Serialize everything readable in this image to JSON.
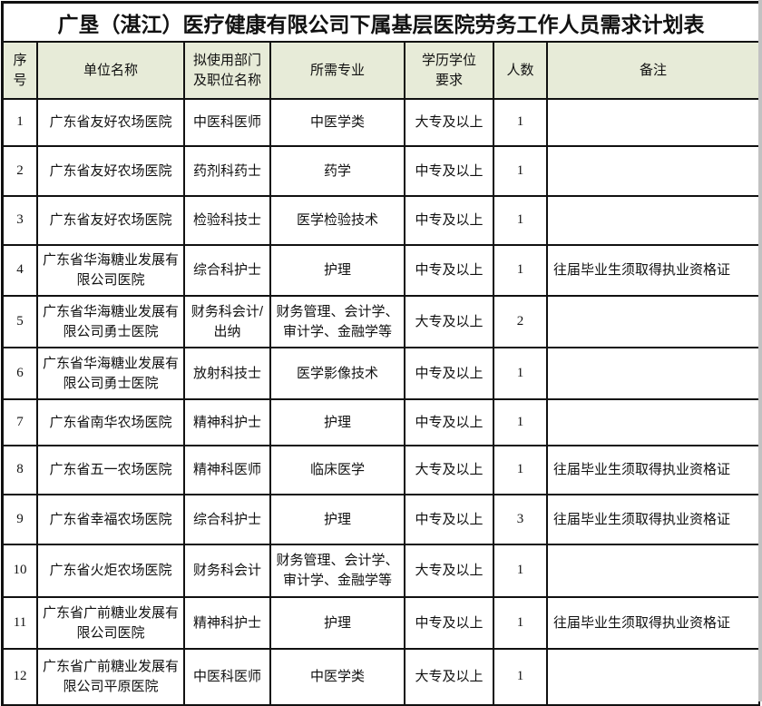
{
  "title": "广垦（湛江）医疗健康有限公司下属基层医院劳务工作人员需求计划表",
  "colors": {
    "header_bg": "#e7ebd8",
    "border": "#111111",
    "edge_strip": "#c2c2c2"
  },
  "table": {
    "headers": {
      "no": "序号",
      "unit": "单位名称",
      "dept": "拟使用部门\n及职位名称",
      "major": "所需专业",
      "edu": "学历学位\n要求",
      "count": "人数",
      "remark": "备注"
    },
    "rows": [
      {
        "no": "1",
        "unit": "广东省友好农场医院",
        "dept": "中医科医师",
        "major": "中医学类",
        "edu": "大专及以上",
        "count": "1",
        "remark": ""
      },
      {
        "no": "2",
        "unit": "广东省友好农场医院",
        "dept": "药剂科药士",
        "major": "药学",
        "edu": "中专及以上",
        "count": "1",
        "remark": ""
      },
      {
        "no": "3",
        "unit": "广东省友好农场医院",
        "dept": "检验科技士",
        "major": "医学检验技术",
        "edu": "中专及以上",
        "count": "1",
        "remark": ""
      },
      {
        "no": "4",
        "unit": "广东省华海糖业发展有限公司医院",
        "dept": "综合科护士",
        "major": "护理",
        "edu": "中专及以上",
        "count": "1",
        "remark": "往届毕业生须取得执业资格证"
      },
      {
        "no": "5",
        "unit": "广东省华海糖业发展有限公司勇士医院",
        "dept": "财务科会计/\n出纳",
        "major": "财务管理、会计学、\n审计学、金融学等",
        "edu": "大专及以上",
        "count": "2",
        "remark": ""
      },
      {
        "no": "6",
        "unit": "广东省华海糖业发展有限公司勇士医院",
        "dept": "放射科技士",
        "major": "医学影像技术",
        "edu": "中专及以上",
        "count": "1",
        "remark": ""
      },
      {
        "no": "7",
        "unit": "广东省南华农场医院",
        "dept": "精神科护士",
        "major": "护理",
        "edu": "中专及以上",
        "count": "1",
        "remark": ""
      },
      {
        "no": "8",
        "unit": "广东省五一农场医院",
        "dept": "精神科医师",
        "major": "临床医学",
        "edu": "大专及以上",
        "count": "1",
        "remark": "往届毕业生须取得执业资格证"
      },
      {
        "no": "9",
        "unit": "广东省幸福农场医院",
        "dept": "综合科护士",
        "major": "护理",
        "edu": "中专及以上",
        "count": "3",
        "remark": "往届毕业生须取得执业资格证"
      },
      {
        "no": "10",
        "unit": "广东省火炬农场医院",
        "dept": "财务科会计",
        "major": "财务管理、会计学、\n审计学、金融学等",
        "edu": "大专及以上",
        "count": "1",
        "remark": ""
      },
      {
        "no": "11",
        "unit": "广东省广前糖业发展有限公司医院",
        "dept": "精神科护士",
        "major": "护理",
        "edu": "中专及以上",
        "count": "1",
        "remark": "往届毕业生须取得执业资格证"
      },
      {
        "no": "12",
        "unit": "广东省广前糖业发展有限公司平原医院",
        "dept": "中医科医师",
        "major": "中医学类",
        "edu": "大专及以上",
        "count": "1",
        "remark": ""
      }
    ]
  }
}
